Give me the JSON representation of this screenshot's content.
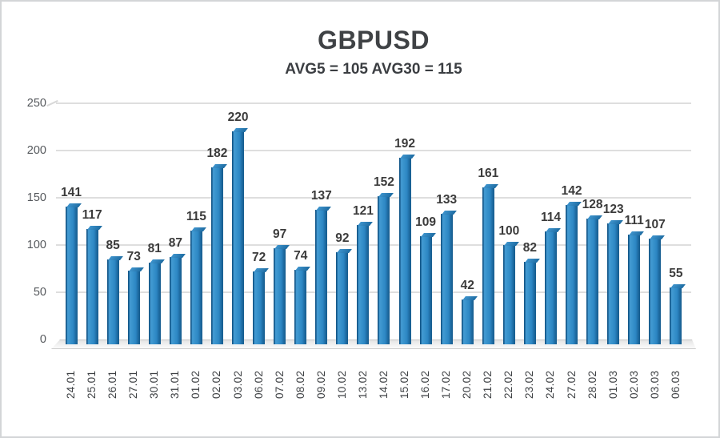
{
  "frame": {
    "background": "#ffffff",
    "border_color": "#d3d5d7"
  },
  "chart_data": {
    "type": "bar",
    "title": "GBPUSD",
    "subtitle": "AVG5 = 105 AVG30 = 115",
    "avg5": 105,
    "avg30": 115,
    "categories": [
      "24.01",
      "25.01",
      "26.01",
      "27.01",
      "30.01",
      "31.01",
      "01.02",
      "02.02",
      "03.02",
      "06.02",
      "07.02",
      "08.02",
      "09.02",
      "10.02",
      "13.02",
      "14.02",
      "15.02",
      "16.02",
      "17.02",
      "20.02",
      "21.02",
      "22.02",
      "23.02",
      "24.02",
      "27.02",
      "28.02",
      "01.03",
      "02.03",
      "03.03",
      "06.03"
    ],
    "values": [
      141,
      117,
      85,
      73,
      81,
      87,
      115,
      182,
      220,
      72,
      97,
      74,
      137,
      92,
      121,
      152,
      192,
      109,
      133,
      42,
      161,
      100,
      82,
      114,
      142,
      128,
      123,
      111,
      107,
      55
    ],
    "xlabel": "",
    "ylabel": "",
    "ylim": [
      0,
      250
    ],
    "yticks": [
      0,
      50,
      100,
      150,
      200,
      250
    ],
    "grid": "horizontal",
    "legend_position": "none",
    "data_labels": "above-bars",
    "x_tick_rotation": 90
  },
  "colors": {
    "bar_main": "#2e86c4",
    "bar_light": "#449bd3",
    "bar_dark": "#14588a",
    "gridline": "#dedede",
    "title_text": "#3f4245",
    "value_label_text": "#3b3b3b",
    "axis_tick_text": "#55585c",
    "floor_edge": "#c6c6c6"
  }
}
